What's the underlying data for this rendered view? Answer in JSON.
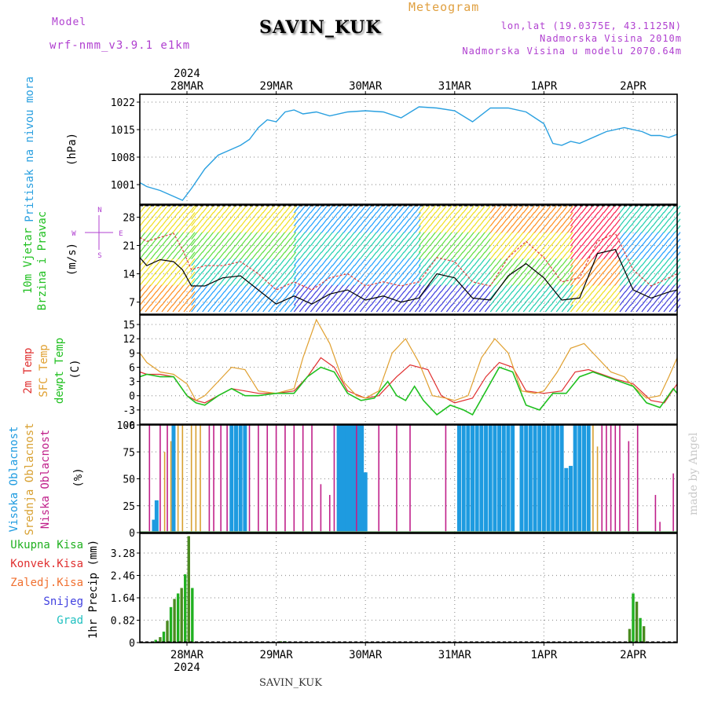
{
  "header": {
    "model_label": "Model",
    "model_name": "wrf-nmm_v3.9.1 e1km",
    "station": "SAVIN_KUK",
    "title": "Meteogram",
    "lonlat": "lon,lat (19.0375E, 43.1125N)",
    "elevation": "Nadmorska Visina 2010m",
    "model_elevation": "Nadmorska Visina u modelu 2070.64m",
    "credit": "made by Angel",
    "bottom_station": "SAVIN_KUK"
  },
  "time_axis": {
    "year": "2024",
    "labels": [
      "28MAR",
      "29MAR",
      "30MAR",
      "31MAR",
      "1APR",
      "2APR"
    ]
  },
  "colors": {
    "pressure": "#2aa0e0",
    "t2m": "#e03030",
    "sfc": "#e0a030",
    "dewpt": "#20c020",
    "high_cloud": "#1e9be0",
    "mid_cloud": "#d8a030",
    "low_cloud": "#c0208a",
    "total_precip": "#20b020",
    "wind_line": "#000000",
    "gust_line": "#e04040"
  },
  "chart_data": [
    {
      "type": "line",
      "panel": "pressure",
      "ylabel": [
        "Pritisak na nivou mora",
        "(hPa)"
      ],
      "ylim": [
        996,
        1024
      ],
      "yticks": [
        1001,
        1008,
        1015,
        1022
      ],
      "grid": true,
      "series": [
        {
          "x": [
            -0.6,
            -0.45,
            -0.3,
            -0.15,
            -0.05,
            0.05,
            0.2,
            0.35,
            0.5,
            0.6,
            0.7,
            0.8,
            0.9,
            1.0,
            1.1,
            1.2,
            1.3,
            1.45,
            1.6,
            1.8,
            2.0,
            2.2,
            2.4,
            2.6,
            2.8,
            3.0,
            3.2,
            3.4,
            3.6,
            3.8,
            4.0,
            4.1,
            4.2,
            4.3,
            4.4,
            4.5,
            4.7,
            4.9,
            5.0,
            5.1,
            5.2,
            5.3,
            5.4,
            5.5,
            5.55
          ],
          "values": [
            1001.5,
            1000.5,
            999.5,
            998,
            997,
            1000,
            1005,
            1008.5,
            1010,
            1011,
            1012.5,
            1015.5,
            1017.5,
            1017,
            1019.5,
            1020,
            1019,
            1019.5,
            1018.5,
            1019.5,
            1019.8,
            1019.5,
            1018,
            1020.8,
            1020.5,
            1019.8,
            1017,
            1020.5,
            1020.5,
            1019.5,
            1016.5,
            1011.5,
            1011,
            1012,
            1011.5,
            1012.5,
            1014.5,
            1015.5,
            1015,
            1014.5,
            1013.5,
            1013.5,
            1013,
            1013.8,
            1014
          ]
        }
      ]
    },
    {
      "type": "line",
      "panel": "wind",
      "ylabel": [
        "10m Vjetar",
        "Brzina i Pravac",
        "(m/s)"
      ],
      "compass": [
        "N",
        "S",
        "W",
        "E"
      ],
      "ylim": [
        4,
        31
      ],
      "yticks": [
        7,
        14,
        21,
        28
      ],
      "series": [
        {
          "name": "wind",
          "x": [
            -0.6,
            -0.45,
            -0.3,
            -0.15,
            -0.05,
            0.05,
            0.2,
            0.4,
            0.6,
            0.8,
            1.0,
            1.2,
            1.4,
            1.6,
            1.8,
            2.0,
            2.2,
            2.4,
            2.6,
            2.8,
            3.0,
            3.2,
            3.4,
            3.6,
            3.8,
            4.0,
            4.2,
            4.4,
            4.6,
            4.8,
            5.0,
            5.2,
            5.4,
            5.55
          ],
          "values": [
            18,
            16,
            17.5,
            17,
            15,
            11,
            11,
            13,
            13.5,
            10,
            6.5,
            8.5,
            6.5,
            9,
            10,
            7.5,
            8.5,
            7,
            8,
            14,
            13,
            8,
            7.5,
            13.5,
            16.5,
            13,
            7.5,
            8,
            19,
            20,
            10,
            8,
            9.5,
            10
          ]
        },
        {
          "name": "gust",
          "x": [
            -0.6,
            -0.45,
            -0.3,
            -0.15,
            -0.05,
            0.05,
            0.2,
            0.4,
            0.6,
            0.8,
            1.0,
            1.2,
            1.4,
            1.6,
            1.8,
            2.0,
            2.2,
            2.4,
            2.6,
            2.8,
            3.0,
            3.2,
            3.4,
            3.6,
            3.8,
            4.0,
            4.2,
            4.4,
            4.6,
            4.8,
            5.0,
            5.2,
            5.4,
            5.55
          ],
          "values": [
            23,
            22,
            23,
            24,
            20,
            15,
            16,
            16,
            17,
            14,
            10,
            12,
            10,
            13,
            14,
            11,
            12,
            11,
            12,
            18,
            17,
            12,
            11,
            18,
            22,
            18,
            12,
            13,
            22,
            24,
            15,
            11,
            13,
            14
          ]
        }
      ]
    },
    {
      "type": "line",
      "panel": "temperature",
      "ylabel": [
        "2m Temp",
        "SFC Temp",
        "dewpt Temp",
        "(C)"
      ],
      "ylim": [
        -6,
        17
      ],
      "yticks": [
        -3,
        0,
        3,
        6,
        9,
        12,
        15
      ],
      "tick_bottom_label": "-6",
      "series": [
        {
          "name": "2m Temp",
          "x": [
            -0.6,
            -0.45,
            -0.3,
            -0.15,
            0.0,
            0.1,
            0.2,
            0.35,
            0.5,
            0.65,
            0.8,
            1.0,
            1.2,
            1.35,
            1.5,
            1.65,
            1.8,
            2.0,
            2.15,
            2.35,
            2.5,
            2.7,
            2.85,
            3.0,
            3.2,
            3.35,
            3.5,
            3.65,
            3.8,
            4.0,
            4.2,
            4.35,
            4.5,
            4.65,
            4.8,
            5.0,
            5.2,
            5.35,
            5.5,
            5.55
          ],
          "values": [
            5,
            4.5,
            4.5,
            4,
            0,
            -1,
            -1.5,
            0,
            1.5,
            1,
            0.5,
            0.5,
            1,
            4,
            8,
            6,
            1,
            -0.5,
            0,
            4,
            6.5,
            5.5,
            0,
            -1.5,
            -0.5,
            4,
            7,
            6,
            1,
            0.5,
            1,
            5,
            5.5,
            4.5,
            3.5,
            2.5,
            -1,
            -1.5,
            2.5,
            2
          ]
        },
        {
          "name": "SFC Temp",
          "x": [
            -0.6,
            -0.45,
            -0.3,
            -0.15,
            0.0,
            0.1,
            0.2,
            0.35,
            0.5,
            0.65,
            0.8,
            1.0,
            1.2,
            1.3,
            1.45,
            1.6,
            1.75,
            1.9,
            2.0,
            2.15,
            2.3,
            2.45,
            2.6,
            2.75,
            2.9,
            3.0,
            3.15,
            3.3,
            3.45,
            3.6,
            3.75,
            3.9,
            4.0,
            4.15,
            4.3,
            4.45,
            4.6,
            4.75,
            4.9,
            5.0,
            5.15,
            5.3,
            5.4,
            5.5,
            5.55
          ],
          "values": [
            9,
            7,
            5,
            4.5,
            2.5,
            -1,
            0,
            3,
            6,
            5.5,
            1,
            0.5,
            1.5,
            8,
            16,
            11,
            3,
            0,
            -0.5,
            1,
            9,
            12,
            7,
            0,
            -0.5,
            -1,
            0,
            8,
            12,
            9,
            1,
            0.5,
            1,
            5,
            10,
            11,
            8,
            5,
            4,
            2,
            -0.5,
            0,
            4,
            8,
            6.5
          ]
        },
        {
          "name": "dewpt Temp",
          "x": [
            -0.6,
            -0.45,
            -0.3,
            -0.15,
            0.0,
            0.1,
            0.2,
            0.35,
            0.5,
            0.65,
            0.8,
            1.0,
            1.2,
            1.35,
            1.5,
            1.65,
            1.8,
            1.95,
            2.1,
            2.25,
            2.35,
            2.45,
            2.55,
            2.65,
            2.8,
            2.95,
            3.1,
            3.2,
            3.35,
            3.5,
            3.65,
            3.8,
            3.95,
            4.1,
            4.25,
            4.4,
            4.55,
            4.7,
            4.85,
            5.0,
            5.15,
            5.3,
            5.45,
            5.55
          ],
          "values": [
            4,
            4.5,
            4,
            4,
            0,
            -1.5,
            -2,
            0,
            1.5,
            0,
            0,
            0.5,
            0.5,
            4,
            6,
            5,
            0.5,
            -1,
            -0.5,
            3,
            0,
            -1,
            2,
            -1,
            -4,
            -2,
            -3,
            -4,
            1,
            6,
            5,
            -2,
            -3,
            0.5,
            0.5,
            4,
            5,
            4,
            3,
            2,
            -1.5,
            -2.5,
            1.5,
            0.5
          ]
        }
      ]
    },
    {
      "type": "bar",
      "panel": "clouds",
      "ylabel": [
        "Visoka Oblacnost",
        "Srednja Oblacnost",
        "Niska Oblacnost",
        "(%)"
      ],
      "ylim": [
        0,
        100
      ],
      "yticks": [
        0,
        25,
        50,
        75,
        100
      ],
      "series": [
        {
          "name": "Visoka Oblacnost",
          "x": [
            -0.37,
            -0.34,
            -0.15,
            0.5,
            0.55,
            0.6,
            0.65,
            1.7,
            1.72,
            1.76,
            1.8,
            1.84,
            1.88,
            1.92,
            1.96,
            2.0,
            3.05,
            3.1,
            3.15,
            3.2,
            3.25,
            3.3,
            3.35,
            3.4,
            3.45,
            3.5,
            3.55,
            3.6,
            3.65,
            3.75,
            3.8,
            3.85,
            3.9,
            3.95,
            4.0,
            4.05,
            4.1,
            4.15,
            4.2,
            4.25,
            4.3,
            4.35,
            4.4,
            4.45,
            4.5
          ],
          "values": [
            12,
            30,
            100,
            100,
            100,
            100,
            100,
            100,
            100,
            100,
            100,
            100,
            100,
            100,
            100,
            56,
            100,
            100,
            100,
            100,
            100,
            100,
            100,
            100,
            100,
            100,
            100,
            100,
            100,
            100,
            100,
            100,
            100,
            100,
            100,
            100,
            100,
            100,
            100,
            60,
            62,
            100,
            100,
            100,
            100
          ]
        },
        {
          "name": "Srednja Oblacnost",
          "x": [
            -0.25,
            -0.18,
            -0.1,
            -0.05,
            0.05,
            0.1,
            0.15,
            4.55,
            4.6
          ],
          "values": [
            75,
            85,
            100,
            100,
            100,
            100,
            100,
            100,
            80
          ]
        },
        {
          "name": "Niska Oblacnost",
          "x": [
            -0.42,
            -0.3,
            -0.22,
            0.25,
            0.3,
            0.38,
            0.45,
            0.7,
            0.8,
            0.9,
            1.0,
            1.1,
            1.2,
            1.3,
            1.4,
            1.5,
            1.6,
            1.65,
            1.9,
            2.15,
            2.35,
            2.5,
            2.9,
            4.65,
            4.7,
            4.75,
            4.8,
            4.85,
            4.95,
            5.05,
            5.25,
            5.3,
            5.45,
            5.5
          ],
          "values": [
            100,
            100,
            100,
            100,
            100,
            100,
            100,
            100,
            100,
            100,
            100,
            100,
            100,
            100,
            100,
            45,
            35,
            100,
            100,
            100,
            100,
            100,
            100,
            100,
            100,
            100,
            100,
            100,
            85,
            100,
            35,
            10,
            55,
            85
          ]
        }
      ]
    },
    {
      "type": "bar",
      "panel": "precip",
      "ylabel": [
        "1hr Precip (mm)"
      ],
      "legend": [
        "Ukupna Kisa",
        "Konvek.Kisa",
        "Zaledj.Kisa",
        "Snijeg",
        "Grad"
      ],
      "ylim": [
        0,
        4.0
      ],
      "yticks": [
        0,
        0.82,
        1.64,
        2.46,
        3.28
      ],
      "series": [
        {
          "name": "Ukupna Kisa",
          "x": [
            -0.35,
            -0.3,
            -0.26,
            -0.22,
            -0.18,
            -0.14,
            -0.1,
            -0.06,
            -0.02,
            0.02,
            0.06,
            1.05,
            1.1,
            4.96,
            5.0,
            5.04,
            5.08,
            5.12
          ],
          "values": [
            0.1,
            0.2,
            0.4,
            0.8,
            1.3,
            1.6,
            1.8,
            2.0,
            2.5,
            3.9,
            2.0,
            0.05,
            0.05,
            0.5,
            1.8,
            1.5,
            0.9,
            0.6
          ]
        }
      ]
    }
  ]
}
